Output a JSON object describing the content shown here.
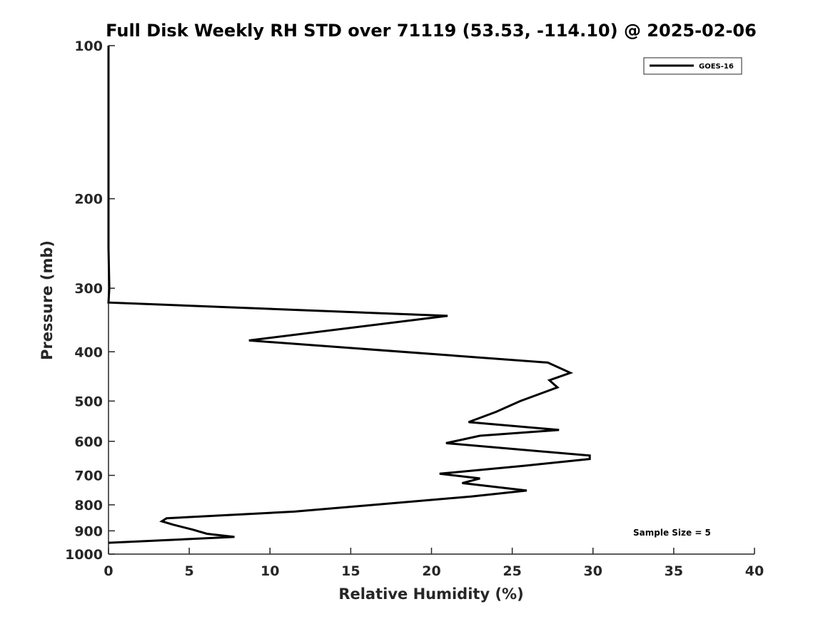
{
  "chart_data": {
    "type": "line",
    "title": "Full Disk Weekly RH STD over 71119 (53.53, -114.10) @ 2025-02-06",
    "xlabel": "Relative Humidity (%)",
    "ylabel": "Pressure (mb)",
    "xlim": [
      0,
      40
    ],
    "ylim": [
      100,
      1000
    ],
    "yscale": "log",
    "y_inverted": true,
    "x_ticks": [
      0,
      5,
      10,
      15,
      20,
      25,
      30,
      35,
      40
    ],
    "x_tick_labels": [
      "0",
      "5",
      "10",
      "15",
      "20",
      "25",
      "30",
      "35",
      "40"
    ],
    "y_ticks": [
      100,
      200,
      300,
      400,
      500,
      600,
      700,
      800,
      900,
      1000
    ],
    "y_tick_labels": [
      "100",
      "200",
      "300",
      "400",
      "500",
      "600",
      "700",
      "800",
      "900",
      "1000"
    ],
    "grid": false,
    "legend_position": "top-right",
    "annotation": "Sample Size = 5",
    "series": [
      {
        "name": "GOES-16",
        "color": "#000000",
        "points": [
          [
            0.0,
            100
          ],
          [
            0.0,
            150
          ],
          [
            0.0,
            200
          ],
          [
            0.0,
            250
          ],
          [
            0.05,
            300
          ],
          [
            0.0,
            320
          ],
          [
            21.0,
            340
          ],
          [
            8.7,
            380
          ],
          [
            27.2,
            420
          ],
          [
            28.6,
            440
          ],
          [
            27.3,
            455
          ],
          [
            27.8,
            470
          ],
          [
            25.5,
            500
          ],
          [
            24.0,
            525
          ],
          [
            22.3,
            550
          ],
          [
            27.9,
            570
          ],
          [
            23.0,
            585
          ],
          [
            20.9,
            605
          ],
          [
            29.8,
            640
          ],
          [
            29.8,
            650
          ],
          [
            25.8,
            670
          ],
          [
            20.5,
            695
          ],
          [
            23.0,
            710
          ],
          [
            21.9,
            725
          ],
          [
            25.9,
            750
          ],
          [
            22.5,
            770
          ],
          [
            11.5,
            825
          ],
          [
            3.6,
            850
          ],
          [
            3.3,
            862
          ],
          [
            4.0,
            875
          ],
          [
            5.2,
            895
          ],
          [
            6.1,
            912
          ],
          [
            7.8,
            925
          ],
          [
            0.0,
            950
          ]
        ]
      }
    ]
  }
}
